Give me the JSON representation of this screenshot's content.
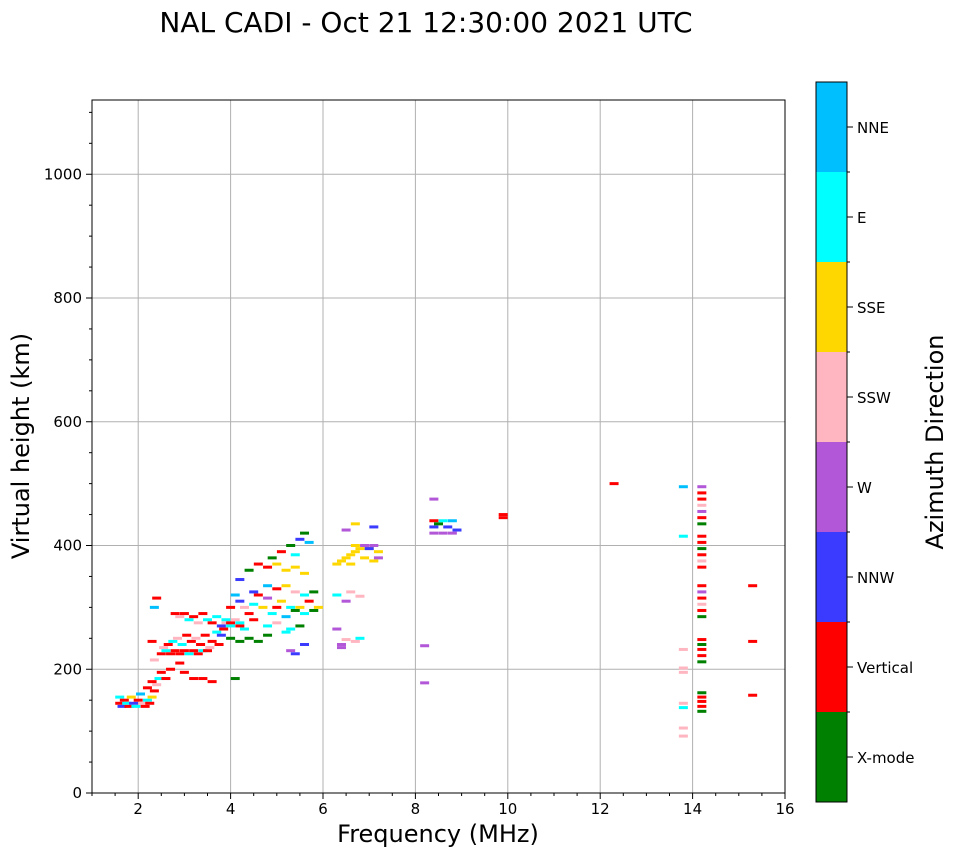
{
  "chart_data": {
    "type": "scatter",
    "title": "NAL CADI - Oct 21 12:30:00 2021 UTC",
    "xlabel": "Frequency (MHz)",
    "ylabel": "Virtual height (km)",
    "xlim": [
      1,
      16
    ],
    "ylim": [
      0,
      1120
    ],
    "xticks": [
      2,
      4,
      6,
      8,
      10,
      12,
      14,
      16
    ],
    "yticks": [
      0,
      200,
      400,
      600,
      800,
      1000
    ],
    "grid": true,
    "colorbar": {
      "label": "Azimuth Direction",
      "categories": [
        {
          "name": "X-mode",
          "color": "#008000"
        },
        {
          "name": "Vertical",
          "color": "#ff0000"
        },
        {
          "name": "NNW",
          "color": "#3b3bff"
        },
        {
          "name": "W",
          "color": "#b257d8"
        },
        {
          "name": "SSW",
          "color": "#ffb6c1"
        },
        {
          "name": "SSE",
          "color": "#ffd700"
        },
        {
          "name": "E",
          "color": "#00ffff"
        },
        {
          "name": "NNE",
          "color": "#00bfff"
        }
      ]
    },
    "points": [
      [
        1.6,
        145,
        "Vertical"
      ],
      [
        1.6,
        155,
        "E"
      ],
      [
        1.65,
        140,
        "NNW"
      ],
      [
        1.7,
        150,
        "Vertical"
      ],
      [
        1.75,
        145,
        "E"
      ],
      [
        1.8,
        140,
        "Vertical"
      ],
      [
        1.85,
        155,
        "SSE"
      ],
      [
        1.9,
        145,
        "NNW"
      ],
      [
        1.95,
        140,
        "E"
      ],
      [
        2.0,
        150,
        "Vertical"
      ],
      [
        2.05,
        160,
        "NNE"
      ],
      [
        2.1,
        145,
        "SSW"
      ],
      [
        2.15,
        140,
        "Vertical"
      ],
      [
        2.2,
        150,
        "E"
      ],
      [
        2.25,
        145,
        "Vertical"
      ],
      [
        2.3,
        155,
        "SSE"
      ],
      [
        2.35,
        165,
        "Vertical"
      ],
      [
        2.4,
        175,
        "SSW"
      ],
      [
        2.45,
        185,
        "E"
      ],
      [
        2.5,
        195,
        "Vertical"
      ],
      [
        2.2,
        170,
        "Vertical"
      ],
      [
        2.3,
        180,
        "Vertical"
      ],
      [
        2.35,
        215,
        "SSW"
      ],
      [
        2.3,
        245,
        "Vertical"
      ],
      [
        2.35,
        300,
        "NNE"
      ],
      [
        2.4,
        315,
        "Vertical"
      ],
      [
        2.5,
        225,
        "Vertical"
      ],
      [
        2.55,
        235,
        "SSW"
      ],
      [
        2.6,
        230,
        "E"
      ],
      [
        2.65,
        240,
        "Vertical"
      ],
      [
        2.7,
        225,
        "Vertical"
      ],
      [
        2.75,
        245,
        "E"
      ],
      [
        2.8,
        230,
        "Vertical"
      ],
      [
        2.85,
        250,
        "SSW"
      ],
      [
        2.9,
        225,
        "Vertical"
      ],
      [
        2.95,
        240,
        "E"
      ],
      [
        3.0,
        230,
        "Vertical"
      ],
      [
        3.05,
        255,
        "Vertical"
      ],
      [
        3.1,
        225,
        "E"
      ],
      [
        3.15,
        245,
        "Vertical"
      ],
      [
        3.2,
        230,
        "Vertical"
      ],
      [
        3.25,
        250,
        "SSW"
      ],
      [
        3.3,
        225,
        "Vertical"
      ],
      [
        3.35,
        240,
        "Vertical"
      ],
      [
        3.4,
        230,
        "E"
      ],
      [
        3.45,
        255,
        "Vertical"
      ],
      [
        3.5,
        230,
        "Vertical"
      ],
      [
        3.55,
        235,
        "SSW"
      ],
      [
        3.6,
        245,
        "Vertical"
      ],
      [
        3.7,
        260,
        "E"
      ],
      [
        3.75,
        240,
        "Vertical"
      ],
      [
        3.8,
        255,
        "NNW"
      ],
      [
        3.85,
        265,
        "Vertical"
      ],
      [
        3.9,
        275,
        "SSW"
      ],
      [
        2.8,
        290,
        "Vertical"
      ],
      [
        2.9,
        285,
        "SSW"
      ],
      [
        3.0,
        290,
        "Vertical"
      ],
      [
        3.1,
        280,
        "E"
      ],
      [
        3.2,
        285,
        "Vertical"
      ],
      [
        3.3,
        275,
        "SSW"
      ],
      [
        3.4,
        290,
        "Vertical"
      ],
      [
        3.5,
        280,
        "E"
      ],
      [
        3.6,
        275,
        "Vertical"
      ],
      [
        3.7,
        285,
        "E"
      ],
      [
        3.8,
        270,
        "NNW"
      ],
      [
        3.9,
        280,
        "E"
      ],
      [
        4.0,
        275,
        "Vertical"
      ],
      [
        4.1,
        280,
        "SSW"
      ],
      [
        4.2,
        270,
        "Vertical"
      ],
      [
        4.3,
        265,
        "E"
      ],
      [
        2.7,
        200,
        "Vertical"
      ],
      [
        2.6,
        185,
        "Vertical"
      ],
      [
        3.0,
        195,
        "Vertical"
      ],
      [
        3.2,
        185,
        "Vertical"
      ],
      [
        2.9,
        210,
        "Vertical"
      ],
      [
        3.4,
        185,
        "Vertical"
      ],
      [
        3.6,
        180,
        "Vertical"
      ],
      [
        4.0,
        250,
        "X-mode"
      ],
      [
        4.2,
        245,
        "X-mode"
      ],
      [
        4.4,
        250,
        "X-mode"
      ],
      [
        4.6,
        245,
        "X-mode"
      ],
      [
        4.8,
        255,
        "X-mode"
      ],
      [
        4.1,
        185,
        "X-mode"
      ],
      [
        4.0,
        300,
        "Vertical"
      ],
      [
        4.1,
        320,
        "NNE"
      ],
      [
        4.2,
        310,
        "NNW"
      ],
      [
        4.3,
        300,
        "SSW"
      ],
      [
        4.4,
        290,
        "Vertical"
      ],
      [
        4.5,
        305,
        "E"
      ],
      [
        4.6,
        320,
        "Vertical"
      ],
      [
        4.7,
        300,
        "SSE"
      ],
      [
        4.8,
        315,
        "W"
      ],
      [
        4.9,
        290,
        "E"
      ],
      [
        5.0,
        300,
        "Vertical"
      ],
      [
        5.1,
        310,
        "SSE"
      ],
      [
        5.2,
        285,
        "NNE"
      ],
      [
        5.3,
        300,
        "E"
      ],
      [
        5.4,
        295,
        "X-mode"
      ],
      [
        5.5,
        300,
        "SSE"
      ],
      [
        5.6,
        290,
        "E"
      ],
      [
        5.7,
        310,
        "Vertical"
      ],
      [
        5.8,
        295,
        "X-mode"
      ],
      [
        5.9,
        300,
        "SSE"
      ],
      [
        4.0,
        270,
        "E"
      ],
      [
        4.2,
        275,
        "E"
      ],
      [
        4.5,
        280,
        "Vertical"
      ],
      [
        4.8,
        270,
        "E"
      ],
      [
        5.0,
        275,
        "SSW"
      ],
      [
        5.3,
        265,
        "E"
      ],
      [
        5.5,
        270,
        "X-mode"
      ],
      [
        5.2,
        260,
        "E"
      ],
      [
        5.3,
        230,
        "W"
      ],
      [
        5.4,
        225,
        "NNW"
      ],
      [
        5.6,
        240,
        "NNW"
      ],
      [
        4.6,
        370,
        "Vertical"
      ],
      [
        4.8,
        365,
        "Vertical"
      ],
      [
        5.0,
        370,
        "SSE"
      ],
      [
        5.2,
        360,
        "SSE"
      ],
      [
        5.4,
        365,
        "SSE"
      ],
      [
        5.6,
        355,
        "SSE"
      ],
      [
        4.9,
        380,
        "X-mode"
      ],
      [
        5.1,
        390,
        "Vertical"
      ],
      [
        5.3,
        400,
        "X-mode"
      ],
      [
        5.5,
        410,
        "NNW"
      ],
      [
        5.6,
        420,
        "X-mode"
      ],
      [
        5.7,
        405,
        "NNE"
      ],
      [
        5.4,
        385,
        "E"
      ],
      [
        4.4,
        360,
        "X-mode"
      ],
      [
        4.2,
        345,
        "NNW"
      ],
      [
        5.0,
        330,
        "Vertical"
      ],
      [
        5.2,
        335,
        "SSE"
      ],
      [
        5.4,
        325,
        "SSW"
      ],
      [
        5.6,
        320,
        "E"
      ],
      [
        5.8,
        325,
        "X-mode"
      ],
      [
        4.8,
        335,
        "NNE"
      ],
      [
        4.5,
        325,
        "NNW"
      ],
      [
        6.3,
        370,
        "SSE"
      ],
      [
        6.4,
        375,
        "SSE"
      ],
      [
        6.5,
        380,
        "SSE"
      ],
      [
        6.6,
        385,
        "SSE"
      ],
      [
        6.7,
        390,
        "SSE"
      ],
      [
        6.8,
        395,
        "SSE"
      ],
      [
        6.9,
        400,
        "W"
      ],
      [
        7.0,
        395,
        "SSE"
      ],
      [
        7.1,
        400,
        "W"
      ],
      [
        7.2,
        390,
        "SSE"
      ],
      [
        7.1,
        375,
        "SSE"
      ],
      [
        6.9,
        380,
        "SSE"
      ],
      [
        6.7,
        400,
        "SSE"
      ],
      [
        6.6,
        370,
        "SSE"
      ],
      [
        7.2,
        380,
        "W"
      ],
      [
        6.5,
        425,
        "W"
      ],
      [
        6.7,
        435,
        "SSE"
      ],
      [
        7.1,
        430,
        "NNW"
      ],
      [
        7.0,
        395,
        "NNW"
      ],
      [
        6.3,
        320,
        "E"
      ],
      [
        6.5,
        310,
        "W"
      ],
      [
        6.6,
        325,
        "SSW"
      ],
      [
        6.8,
        318,
        "SSW"
      ],
      [
        6.3,
        265,
        "W"
      ],
      [
        6.4,
        240,
        "W"
      ],
      [
        6.5,
        248,
        "SSW"
      ],
      [
        6.7,
        245,
        "SSW"
      ],
      [
        6.8,
        250,
        "E"
      ],
      [
        6.4,
        235,
        "W"
      ],
      [
        8.4,
        440,
        "Vertical"
      ],
      [
        8.4,
        430,
        "NNW"
      ],
      [
        8.4,
        420,
        "W"
      ],
      [
        8.5,
        435,
        "X-mode"
      ],
      [
        8.6,
        440,
        "E"
      ],
      [
        8.7,
        430,
        "NNW"
      ],
      [
        8.8,
        440,
        "NNE"
      ],
      [
        8.9,
        425,
        "NNW"
      ],
      [
        8.6,
        420,
        "W"
      ],
      [
        8.8,
        420,
        "W"
      ],
      [
        8.4,
        475,
        "W"
      ],
      [
        8.2,
        238,
        "W"
      ],
      [
        8.2,
        178,
        "W"
      ],
      [
        9.9,
        450,
        "Vertical"
      ],
      [
        9.9,
        445,
        "Vertical"
      ],
      [
        12.3,
        500,
        "Vertical"
      ],
      [
        14.2,
        495,
        "W"
      ],
      [
        14.2,
        485,
        "Vertical"
      ],
      [
        14.2,
        475,
        "Vertical"
      ],
      [
        14.2,
        465,
        "SSW"
      ],
      [
        14.2,
        455,
        "W"
      ],
      [
        14.2,
        445,
        "Vertical"
      ],
      [
        14.2,
        435,
        "X-mode"
      ],
      [
        14.2,
        415,
        "Vertical"
      ],
      [
        14.2,
        405,
        "Vertical"
      ],
      [
        14.2,
        395,
        "X-mode"
      ],
      [
        14.2,
        385,
        "Vertical"
      ],
      [
        14.2,
        375,
        "SSW"
      ],
      [
        14.2,
        365,
        "Vertical"
      ],
      [
        13.8,
        495,
        "NNE"
      ],
      [
        13.8,
        415,
        "E"
      ],
      [
        14.2,
        335,
        "Vertical"
      ],
      [
        14.2,
        325,
        "W"
      ],
      [
        14.2,
        315,
        "Vertical"
      ],
      [
        14.2,
        305,
        "SSW"
      ],
      [
        14.2,
        295,
        "Vertical"
      ],
      [
        14.2,
        285,
        "X-mode"
      ],
      [
        14.2,
        248,
        "Vertical"
      ],
      [
        14.2,
        240,
        "X-mode"
      ],
      [
        14.2,
        232,
        "Vertical"
      ],
      [
        14.2,
        222,
        "Vertical"
      ],
      [
        14.2,
        212,
        "X-mode"
      ],
      [
        13.8,
        232,
        "SSW"
      ],
      [
        13.8,
        202,
        "SSW"
      ],
      [
        13.8,
        195,
        "SSW"
      ],
      [
        14.2,
        162,
        "X-mode"
      ],
      [
        14.2,
        155,
        "Vertical"
      ],
      [
        14.2,
        148,
        "Vertical"
      ],
      [
        14.2,
        140,
        "Vertical"
      ],
      [
        14.2,
        132,
        "X-mode"
      ],
      [
        13.8,
        138,
        "E"
      ],
      [
        13.8,
        145,
        "SSW"
      ],
      [
        13.8,
        105,
        "SSW"
      ],
      [
        13.8,
        92,
        "SSW"
      ],
      [
        15.3,
        335,
        "Vertical"
      ],
      [
        15.3,
        245,
        "Vertical"
      ],
      [
        15.3,
        158,
        "Vertical"
      ]
    ]
  }
}
